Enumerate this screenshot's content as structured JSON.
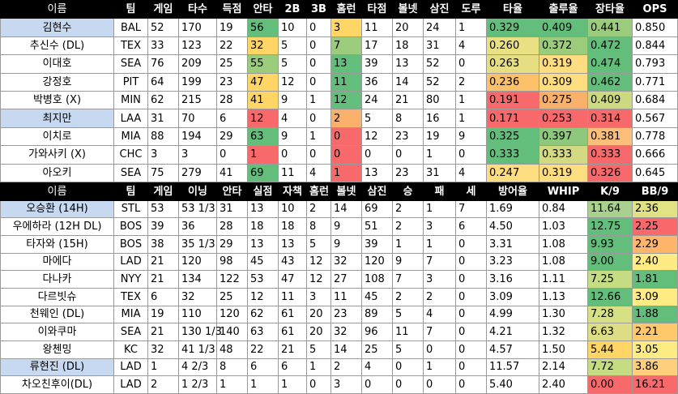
{
  "batters": {
    "headers": [
      "이름",
      "팀",
      "게임",
      "타수",
      "득점",
      "안타",
      "2B",
      "3B",
      "홈런",
      "타점",
      "볼넷",
      "삼진",
      "도루",
      "타율",
      "출루율",
      "장타율",
      "OPS"
    ],
    "rows": [
      {
        "selected": true,
        "cells": [
          "김현수",
          "BAL",
          "52",
          "170",
          "19",
          "56",
          "10",
          "0",
          "3",
          "11",
          "20",
          "24",
          "1",
          "0.329",
          "0.409",
          "0.441",
          "0.850"
        ]
      },
      {
        "selected": false,
        "cells": [
          "추신수 (DL)",
          "TEX",
          "33",
          "123",
          "22",
          "32",
          "5",
          "0",
          "7",
          "17",
          "18",
          "31",
          "4",
          "0.260",
          "0.372",
          "0.472",
          "0.844"
        ]
      },
      {
        "selected": false,
        "cells": [
          "이대호",
          "SEA",
          "76",
          "209",
          "25",
          "55",
          "5",
          "0",
          "13",
          "39",
          "13",
          "52",
          "0",
          "0.263",
          "0.319",
          "0.474",
          "0.793"
        ]
      },
      {
        "selected": false,
        "cells": [
          "강정호",
          "PIT",
          "64",
          "199",
          "23",
          "47",
          "12",
          "0",
          "11",
          "36",
          "14",
          "52",
          "2",
          "0.236",
          "0.309",
          "0.462",
          "0.771"
        ]
      },
      {
        "selected": false,
        "cells": [
          "박병호 (X)",
          "MIN",
          "62",
          "215",
          "28",
          "41",
          "9",
          "1",
          "12",
          "24",
          "21",
          "80",
          "1",
          "0.191",
          "0.275",
          "0.409",
          "0.684"
        ]
      },
      {
        "selected": true,
        "cells": [
          "최지만",
          "LAA",
          "31",
          "70",
          "6",
          "12",
          "4",
          "0",
          "2",
          "5",
          "8",
          "16",
          "1",
          "0.171",
          "0.253",
          "0.314",
          "0.567"
        ]
      },
      {
        "selected": false,
        "cells": [
          "이치로",
          "MIA",
          "88",
          "194",
          "29",
          "63",
          "9",
          "1",
          "0",
          "12",
          "23",
          "19",
          "9",
          "0.325",
          "0.397",
          "0.381",
          "0.778"
        ]
      },
      {
        "selected": false,
        "cells": [
          "가와사키 (X)",
          "CHC",
          "3",
          "3",
          "0",
          "1",
          "0",
          "0",
          "0",
          "0",
          "0",
          "1",
          "0",
          "0.333",
          "0.333",
          "0.333",
          "0.666"
        ]
      },
      {
        "selected": false,
        "cells": [
          "아오키",
          "SEA",
          "75",
          "279",
          "41",
          "69",
          "11",
          "4",
          "1",
          "13",
          "23",
          "31",
          "4",
          "0.247",
          "0.319",
          "0.326",
          "0.645"
        ]
      }
    ]
  },
  "pitchers": {
    "headers": [
      "이름",
      "팀",
      "게임",
      "이닝",
      "안타",
      "실점",
      "자책",
      "홈런",
      "볼넷",
      "삼진",
      "승",
      "패",
      "세",
      "방어율",
      "WHIP",
      "K/9",
      "BB/9"
    ],
    "rows": [
      {
        "selected": true,
        "cells": [
          "오승환 (14H)",
          "STL",
          "53",
          "53 1/3",
          "31",
          "13",
          "10",
          "2",
          "14",
          "69",
          "2",
          "1",
          "7",
          "1.69",
          "0.84",
          "11.64",
          "2.36"
        ]
      },
      {
        "selected": false,
        "cells": [
          "우에하라 (12H DL)",
          "BOS",
          "39",
          "36",
          "28",
          "18",
          "18",
          "8",
          "9",
          "51",
          "2",
          "3",
          "6",
          "4.50",
          "1.03",
          "12.75",
          "2.25"
        ]
      },
      {
        "selected": false,
        "cells": [
          "타자와 (15H)",
          "BOS",
          "38",
          "35 1/3",
          "29",
          "13",
          "13",
          "5",
          "9",
          "39",
          "1",
          "1",
          "0",
          "3.31",
          "1.08",
          "9.93",
          "2.29"
        ]
      },
      {
        "selected": false,
        "cells": [
          "마에다",
          "LAD",
          "21",
          "120",
          "98",
          "45",
          "43",
          "12",
          "32",
          "120",
          "9",
          "7",
          "0",
          "3.23",
          "1.08",
          "9.00",
          "2.40"
        ]
      },
      {
        "selected": false,
        "cells": [
          "다나카",
          "NYY",
          "21",
          "134",
          "122",
          "53",
          "47",
          "12",
          "27",
          "108",
          "7",
          "3",
          "0",
          "3.16",
          "1.11",
          "7.25",
          "1.81"
        ]
      },
      {
        "selected": false,
        "cells": [
          "다르빗슈",
          "TEX",
          "6",
          "32",
          "25",
          "12",
          "11",
          "3",
          "11",
          "45",
          "2",
          "2",
          "0",
          "3.09",
          "1.13",
          "12.66",
          "3.09"
        ]
      },
      {
        "selected": false,
        "cells": [
          "천웨인 (DL)",
          "MIA",
          "19",
          "110",
          "120",
          "62",
          "61",
          "20",
          "23",
          "89",
          "5",
          "4",
          "0",
          "4.99",
          "1.30",
          "7.28",
          "1.88"
        ]
      },
      {
        "selected": false,
        "cells": [
          "이와쿠마",
          "SEA",
          "21",
          "130 1/3",
          "140",
          "63",
          "61",
          "20",
          "32",
          "96",
          "11",
          "7",
          "0",
          "4.21",
          "1.32",
          "6.63",
          "2.21"
        ]
      },
      {
        "selected": false,
        "cells": [
          "왕첸밍",
          "KC",
          "32",
          "41 1/3",
          "48",
          "22",
          "21",
          "5",
          "14",
          "25",
          "5",
          "0",
          "0",
          "4.57",
          "1.50",
          "5.44",
          "3.05"
        ]
      },
      {
        "selected": true,
        "cells": [
          "류현진 (DL)",
          "LAD",
          "1",
          "4 2/3",
          "8",
          "6",
          "6",
          "1",
          "2",
          "4",
          "0",
          "1",
          "0",
          "11.57",
          "2.14",
          "7.72",
          "3.86"
        ]
      },
      {
        "selected": false,
        "cells": [
          "차오친후이(DL)",
          "LAD",
          "2",
          "1 2/3",
          "1",
          "1",
          "1",
          "0",
          "3",
          "0",
          "0",
          "0",
          "0",
          "5.40",
          "2.40",
          "0.00",
          "16.21"
        ]
      }
    ]
  },
  "colors": {
    "batters": {
      "5": [
        "#63be7b",
        "#ffd666",
        "#9bcc7b",
        "#ffd666",
        "#ffd666",
        "#f8696b",
        "#63be7b",
        "#f8696b",
        "#63be7b"
      ],
      "8": [
        "#ffd666",
        "#9bcc7b",
        "#63be7b",
        "#63be7b",
        "#63be7b",
        "#f8b06b",
        "#f8696b",
        "#f8696b",
        "#f8696b"
      ],
      "13": [
        "#63be7b",
        "#e9e083",
        "#e5de82",
        "#fcc06b",
        "#f8696b",
        "#f8696b",
        "#63be7b",
        "#63be7b",
        "#fedd81"
      ],
      "14": [
        "#63be7b",
        "#9bcc7b",
        "#fedd81",
        "#fedd81",
        "#f8b06b",
        "#f8696b",
        "#8dc87d",
        "#d4da82",
        "#fedd81"
      ],
      "15": [
        "#9bcc7b",
        "#63be7b",
        "#63be7b",
        "#63be7b",
        "#cdd981",
        "#f8696b",
        "#fcbf7b",
        "#f8696b",
        "#f8696b"
      ]
    },
    "pitchers": {
      "15": [
        "#a9d08e",
        "#63be7b",
        "#63be7b",
        "#63be7b",
        "#c6dc82",
        "#63be7b",
        "#d7e183",
        "#ddde83",
        "#ffd666",
        "#c6dc82",
        "#f8696b"
      ],
      "16": [
        "#e0e283",
        "#f8696b",
        "#ffb66b",
        "#ffeb84",
        "#63be7b",
        "#ffeb84",
        "#63be7b",
        "#ffc96b",
        "#ffeb84",
        "#ffcf7b",
        "#f8696b"
      ]
    }
  }
}
